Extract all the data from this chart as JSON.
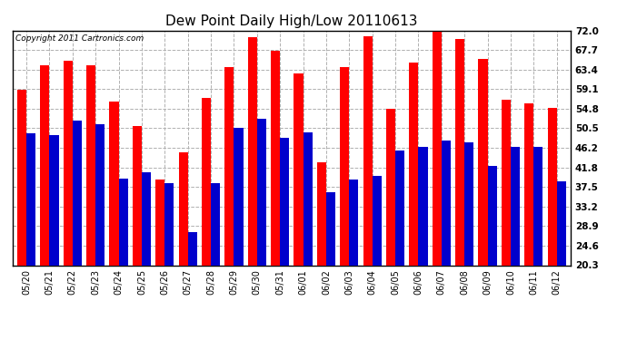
{
  "title": "Dew Point Daily High/Low 20110613",
  "copyright": "Copyright 2011 Cartronics.com",
  "dates": [
    "05/20",
    "05/21",
    "05/22",
    "05/23",
    "05/24",
    "05/25",
    "05/26",
    "05/27",
    "05/28",
    "05/29",
    "05/30",
    "05/31",
    "06/01",
    "06/02",
    "06/03",
    "06/04",
    "06/05",
    "06/06",
    "06/07",
    "06/08",
    "06/09",
    "06/10",
    "06/11",
    "06/12"
  ],
  "highs": [
    59.0,
    64.4,
    65.3,
    64.4,
    56.3,
    50.9,
    39.2,
    45.1,
    57.2,
    63.9,
    70.5,
    67.5,
    62.6,
    43.0,
    63.9,
    70.7,
    54.7,
    64.9,
    71.8,
    70.2,
    65.8,
    56.8,
    55.9,
    55.0
  ],
  "lows": [
    49.3,
    49.0,
    52.2,
    51.3,
    39.4,
    40.7,
    38.3,
    27.5,
    38.3,
    50.5,
    52.5,
    48.3,
    49.5,
    36.3,
    39.2,
    39.9,
    45.5,
    46.4,
    47.7,
    47.3,
    42.1,
    46.4,
    46.4,
    38.7
  ],
  "high_color": "#ff0000",
  "low_color": "#0000cc",
  "bg_color": "#ffffff",
  "plot_bg_color": "#ffffff",
  "grid_color": "#b0b0b0",
  "ytick_labels": [
    "72.0",
    "67.7",
    "63.4",
    "59.1",
    "54.8",
    "50.5",
    "46.2",
    "41.8",
    "37.5",
    "33.2",
    "28.9",
    "24.6",
    "20.3"
  ],
  "ytick_values": [
    72.0,
    67.7,
    63.4,
    59.1,
    54.8,
    50.5,
    46.2,
    41.8,
    37.5,
    33.2,
    28.9,
    24.6,
    20.3
  ],
  "ymin": 20.3,
  "ymax": 72.0,
  "bar_width": 0.4
}
